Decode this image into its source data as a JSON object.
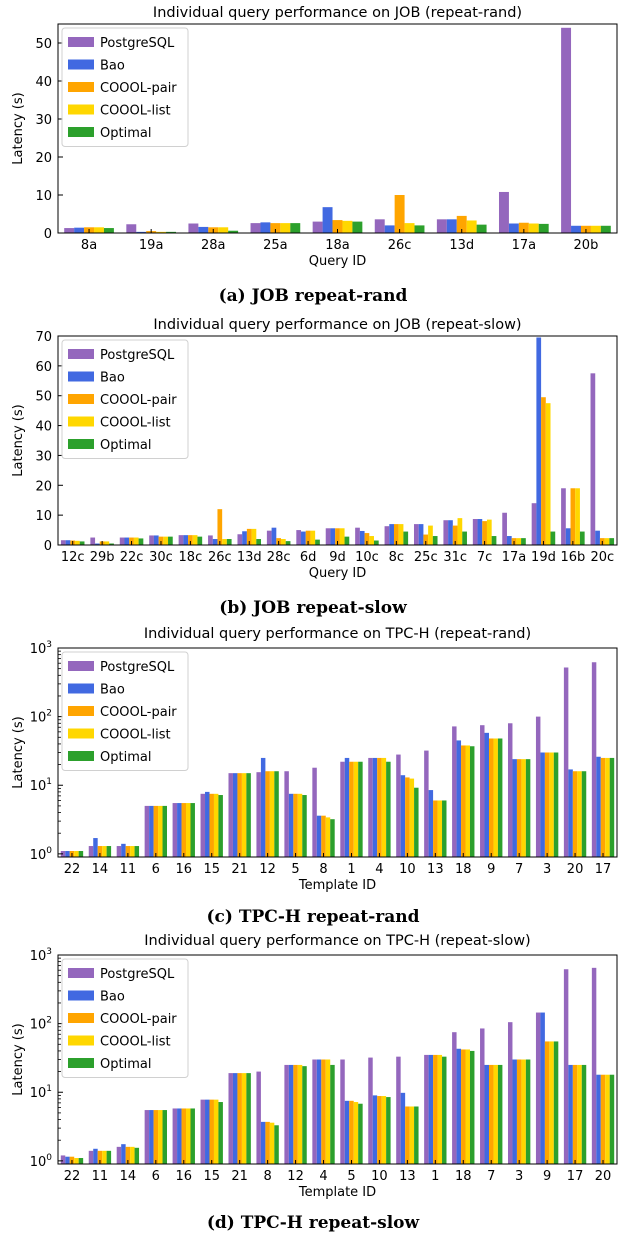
{
  "colors": {
    "PostgreSQL": "#9467bd",
    "Bao": "#4169e1",
    "COOOL-pair": "#ffa500",
    "COOOL-list": "#ffd700",
    "Optimal": "#2ca02c"
  },
  "chart_data": [
    {
      "type": "bar",
      "title": "Individual query performance on JOB (repeat-rand)",
      "caption": "(a) JOB repeat-rand",
      "xlabel": "Query ID",
      "ylabel": "Latency (s)",
      "yscale": "linear",
      "ylim": [
        0,
        55
      ],
      "yticks": [
        "0",
        "10",
        "20",
        "30",
        "40",
        "50"
      ],
      "legend_position": "top-left",
      "categories": [
        "8a",
        "19a",
        "28a",
        "25a",
        "18a",
        "26c",
        "13d",
        "17a",
        "20b"
      ],
      "series": [
        {
          "name": "PostgreSQL",
          "values": [
            1.3,
            2.3,
            2.5,
            2.6,
            3.0,
            3.6,
            3.6,
            10.8,
            54.0
          ]
        },
        {
          "name": "Bao",
          "values": [
            1.4,
            0.3,
            1.6,
            2.8,
            6.8,
            2.0,
            3.6,
            2.5,
            1.9
          ]
        },
        {
          "name": "COOOL-pair",
          "values": [
            1.5,
            0.5,
            1.5,
            2.6,
            3.4,
            10.0,
            4.5,
            2.7,
            1.9
          ]
        },
        {
          "name": "COOOL-list",
          "values": [
            1.5,
            0.3,
            1.5,
            2.6,
            3.2,
            2.6,
            3.3,
            2.5,
            1.9
          ]
        },
        {
          "name": "Optimal",
          "values": [
            1.3,
            0.3,
            0.6,
            2.6,
            3.0,
            2.0,
            2.2,
            2.4,
            1.9
          ]
        }
      ]
    },
    {
      "type": "bar",
      "title": "Individual query performance on JOB (repeat-slow)",
      "caption": "(b) JOB repeat-slow",
      "xlabel": "Query ID",
      "ylabel": "Latency (s)",
      "yscale": "linear",
      "ylim": [
        0,
        70
      ],
      "yticks": [
        "0",
        "10",
        "20",
        "30",
        "40",
        "50",
        "60",
        "70"
      ],
      "legend_position": "top-left",
      "categories": [
        "12c",
        "29b",
        "22c",
        "30c",
        "18c",
        "26c",
        "13d",
        "28c",
        "6d",
        "9d",
        "10c",
        "8c",
        "25c",
        "31c",
        "7c",
        "17a",
        "19d",
        "16b",
        "20c"
      ],
      "series": [
        {
          "name": "PostgreSQL",
          "values": [
            1.6,
            2.5,
            2.5,
            3.2,
            3.3,
            3.2,
            3.6,
            4.8,
            5.0,
            5.6,
            5.8,
            6.3,
            7.0,
            8.3,
            8.7,
            10.8,
            14.0,
            19.0,
            57.5
          ]
        },
        {
          "name": "Bao",
          "values": [
            1.6,
            0.5,
            2.5,
            3.2,
            3.3,
            2.0,
            4.6,
            5.8,
            4.5,
            5.6,
            4.7,
            7.0,
            7.0,
            8.3,
            8.7,
            3.0,
            69.5,
            5.6,
            4.8
          ]
        },
        {
          "name": "COOOL-pair",
          "values": [
            1.5,
            1.2,
            2.5,
            2.8,
            3.3,
            12.0,
            5.4,
            2.3,
            4.8,
            5.6,
            4.0,
            7.0,
            3.5,
            6.5,
            8.0,
            2.3,
            49.5,
            19.0,
            2.3
          ]
        },
        {
          "name": "COOOL-list",
          "values": [
            1.4,
            1.2,
            2.5,
            2.8,
            3.3,
            2.0,
            5.4,
            2.0,
            4.8,
            5.6,
            3.0,
            7.0,
            6.5,
            9.0,
            8.5,
            2.3,
            47.5,
            19.0,
            2.3
          ]
        },
        {
          "name": "Optimal",
          "values": [
            1.2,
            0.5,
            2.2,
            2.8,
            2.8,
            2.0,
            2.0,
            1.3,
            1.8,
            2.8,
            1.5,
            4.5,
            3.0,
            4.5,
            3.0,
            2.3,
            4.5,
            4.5,
            2.3
          ]
        }
      ]
    },
    {
      "type": "bar",
      "title": "Individual query performance on TPC-H (repeat-rand)",
      "caption": "(c) TPC-H repeat-rand",
      "xlabel": "Template ID",
      "ylabel": "Latency (s)",
      "yscale": "log",
      "ylim": [
        0.9,
        1000
      ],
      "yticks": [
        "10^0",
        "10^1",
        "10^2",
        "10^3"
      ],
      "legend_position": "top-left",
      "categories": [
        "22",
        "14",
        "11",
        "6",
        "16",
        "15",
        "21",
        "12",
        "5",
        "8",
        "1",
        "4",
        "10",
        "13",
        "18",
        "9",
        "7",
        "3",
        "20",
        "17"
      ],
      "series": [
        {
          "name": "PostgreSQL",
          "values": [
            1.1,
            1.3,
            1.3,
            5.0,
            5.5,
            7.5,
            15.0,
            15.5,
            16.0,
            18.0,
            22.0,
            25.0,
            28.0,
            32.0,
            72.0,
            75.0,
            80.0,
            100.0,
            520.0,
            620.0
          ]
        },
        {
          "name": "Bao",
          "values": [
            1.1,
            1.7,
            1.4,
            5.0,
            5.5,
            8.0,
            15.0,
            25.0,
            7.5,
            3.6,
            25.0,
            25.0,
            14.0,
            8.5,
            45.0,
            58.0,
            24.0,
            30.0,
            17.0,
            26.0
          ]
        },
        {
          "name": "COOOL-pair",
          "values": [
            1.1,
            1.3,
            1.3,
            5.0,
            5.5,
            7.5,
            15.0,
            16.0,
            7.5,
            3.6,
            22.0,
            25.0,
            13.0,
            6.0,
            38.0,
            48.0,
            24.0,
            30.0,
            16.0,
            25.0
          ]
        },
        {
          "name": "COOOL-list",
          "values": [
            1.1,
            1.3,
            1.3,
            5.0,
            5.5,
            7.5,
            15.0,
            16.0,
            7.5,
            3.4,
            22.0,
            25.0,
            12.5,
            6.0,
            38.0,
            48.0,
            24.0,
            30.0,
            16.0,
            25.0
          ]
        },
        {
          "name": "Optimal",
          "values": [
            1.1,
            1.3,
            1.3,
            5.0,
            5.5,
            7.2,
            15.0,
            16.0,
            7.2,
            3.2,
            22.0,
            22.0,
            9.2,
            6.0,
            37.0,
            48.0,
            24.0,
            30.0,
            16.0,
            25.0
          ]
        }
      ]
    },
    {
      "type": "bar",
      "title": "Individual query performance on TPC-H (repeat-slow)",
      "caption": "(d) TPC-H repeat-slow",
      "xlabel": "Template ID",
      "ylabel": "Latency (s)",
      "yscale": "log",
      "ylim": [
        0.9,
        1000
      ],
      "yticks": [
        "10^0",
        "10^1",
        "10^2",
        "10^3"
      ],
      "legend_position": "top-left",
      "categories": [
        "22",
        "11",
        "14",
        "6",
        "16",
        "15",
        "21",
        "8",
        "12",
        "4",
        "5",
        "10",
        "13",
        "1",
        "18",
        "7",
        "3",
        "9",
        "17",
        "20"
      ],
      "series": [
        {
          "name": "PostgreSQL",
          "values": [
            1.2,
            1.4,
            1.6,
            5.5,
            5.8,
            7.8,
            19.0,
            20.0,
            25.0,
            30.0,
            30.0,
            32.0,
            33.0,
            35.0,
            75.0,
            85.0,
            105.0,
            145.0,
            620.0,
            650.0
          ]
        },
        {
          "name": "Bao",
          "values": [
            1.15,
            1.5,
            1.75,
            5.5,
            5.8,
            7.8,
            19.0,
            3.7,
            25.0,
            30.0,
            7.5,
            9.0,
            9.8,
            35.0,
            43.0,
            25.0,
            30.0,
            145.0,
            25.0,
            18.0
          ]
        },
        {
          "name": "COOOL-pair",
          "values": [
            1.15,
            1.4,
            1.6,
            5.5,
            5.8,
            7.8,
            19.0,
            3.7,
            25.0,
            30.0,
            7.5,
            8.8,
            6.2,
            35.0,
            42.0,
            25.0,
            30.0,
            55.0,
            25.0,
            18.0
          ]
        },
        {
          "name": "COOOL-list",
          "values": [
            1.1,
            1.4,
            1.6,
            5.5,
            5.8,
            7.8,
            19.0,
            3.6,
            25.0,
            30.0,
            7.2,
            8.8,
            6.2,
            35.0,
            42.0,
            25.0,
            30.0,
            55.0,
            25.0,
            18.0
          ]
        },
        {
          "name": "Optimal",
          "values": [
            1.1,
            1.4,
            1.55,
            5.5,
            5.8,
            7.2,
            19.0,
            3.3,
            24.0,
            25.0,
            6.8,
            8.5,
            6.2,
            33.0,
            40.0,
            25.0,
            30.0,
            55.0,
            25.0,
            18.0
          ]
        }
      ]
    }
  ]
}
